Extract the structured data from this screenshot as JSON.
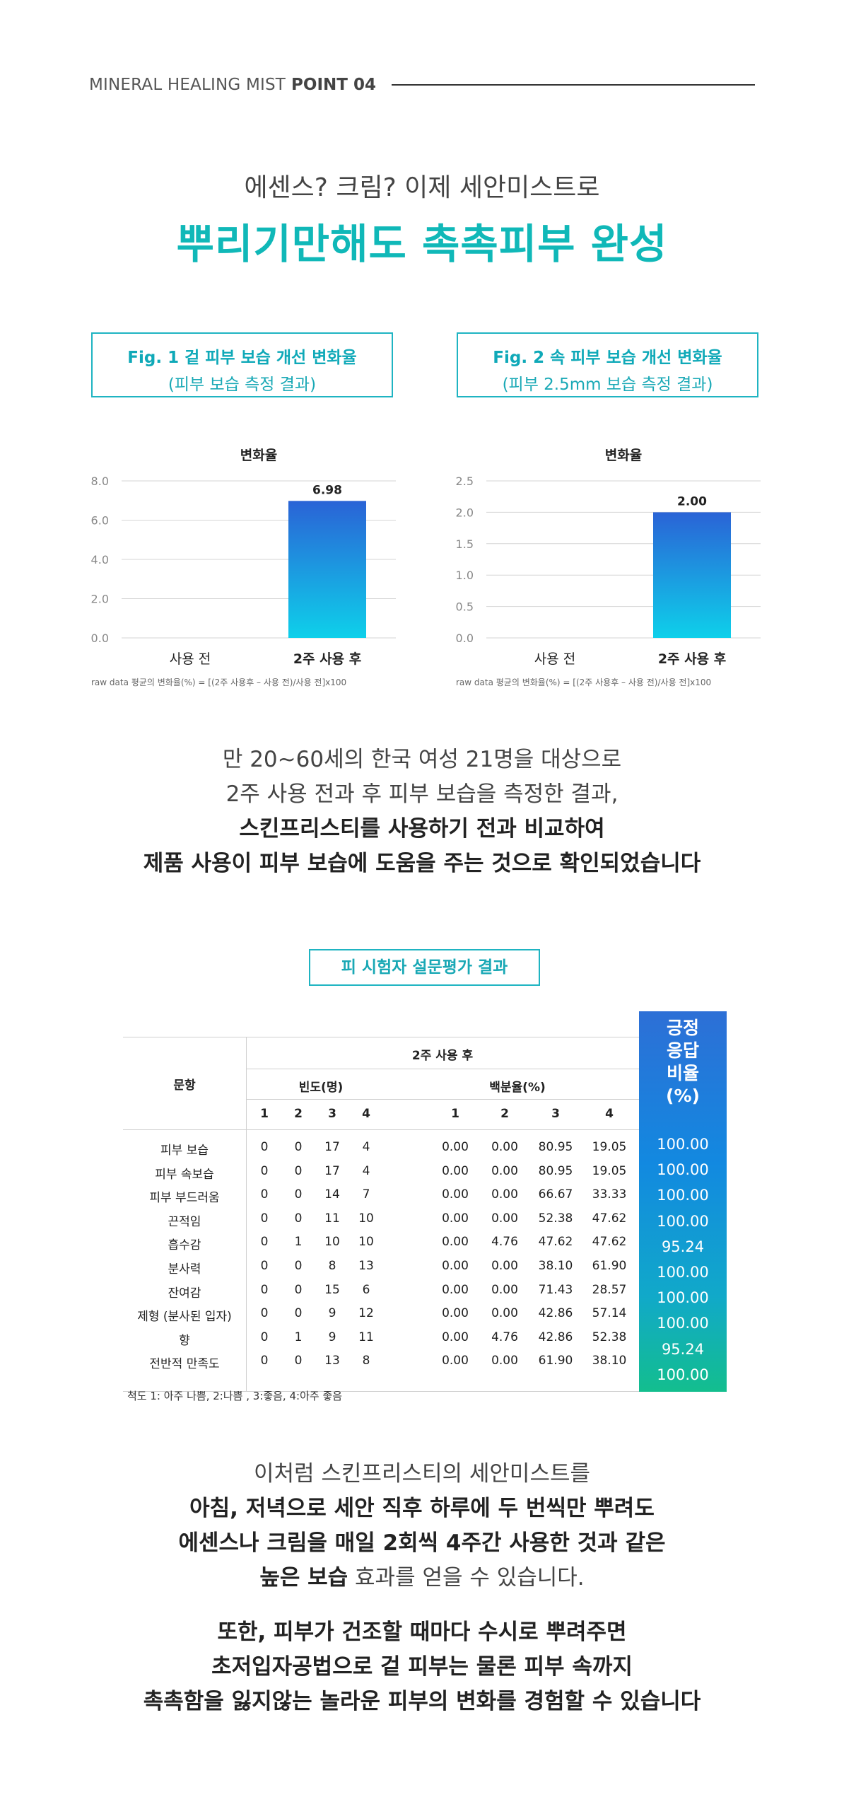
{
  "header": {
    "title_light": "MINERAL HEALING MIST",
    "title_bold": "POINT 04"
  },
  "intro": {
    "subheadline": "에센스? 크림? 이제 세안미스트로",
    "headline": "뿌리기만해도 촉촉피부 완성"
  },
  "fig1": {
    "title": "Fig. 1 겉 피부 보습 개선 변화율",
    "subtitle": "(피부 보습 측정 결과)"
  },
  "fig2": {
    "title": "Fig. 2 속 피부 보습 개선 변화율",
    "subtitle": "(피부 2.5mm 보습 측정 결과)"
  },
  "chart_data": [
    {
      "type": "bar",
      "title": "변화율",
      "categories": [
        "사용 전",
        "2주 사용 후"
      ],
      "values": [
        0,
        6.98
      ],
      "value_labels": [
        "",
        "6.98"
      ],
      "yticks": [
        "0.0",
        "2.0",
        "4.0",
        "6.0",
        "8.0"
      ],
      "ylim": [
        0,
        8
      ],
      "grid": true,
      "footnote": "raw data 평균의 변화율(%) = [(2주 사용후 – 사용 전)/사용 전]x100"
    },
    {
      "type": "bar",
      "title": "변화율",
      "categories": [
        "사용 전",
        "2주 사용 후"
      ],
      "values": [
        0,
        2.0
      ],
      "value_labels": [
        "",
        "2.00"
      ],
      "yticks": [
        "0.0",
        "0.5",
        "1.0",
        "1.5",
        "2.0",
        "2.5"
      ],
      "ylim": [
        0,
        2.5
      ],
      "grid": true,
      "footnote": "raw data 평균의 변화율(%) = [(2주 사용후 – 사용 전)/사용 전]x100"
    }
  ],
  "colors": {
    "accent": "#10b8b8",
    "box_border": "#1fb4c2",
    "bar_top": "#2a63d6",
    "bar_bottom": "#0ed0ea"
  },
  "para1": {
    "line1": "만 20~60세의 한국 여성 21명을 대상으로",
    "line2": "2주 사용 전과 후 피부 보습을 측정한 결과,",
    "line3": "스킨프리스티를 사용하기 전과 비교하여",
    "line4": "제품 사용이 피부 보습에 도움을 주는 것으로 확인되었습니다"
  },
  "survey": {
    "title": "피 시험자 설문평가 결과",
    "col_item": "문항",
    "col_group": "2주 사용 후",
    "col_freq": "빈도(명)",
    "col_pct": "백분율(%)",
    "col_positive": "긍정\n응답\n비율\n(%)",
    "scale_nums": [
      "1",
      "2",
      "3",
      "4"
    ],
    "rows": [
      {
        "item": "피부 보습",
        "freq": [
          "0",
          "0",
          "17",
          "4"
        ],
        "pct": [
          "0.00",
          "0.00",
          "80.95",
          "19.05"
        ],
        "positive": "100.00"
      },
      {
        "item": "피부 속보습",
        "freq": [
          "0",
          "0",
          "17",
          "4"
        ],
        "pct": [
          "0.00",
          "0.00",
          "80.95",
          "19.05"
        ],
        "positive": "100.00"
      },
      {
        "item": "피부 부드러움",
        "freq": [
          "0",
          "0",
          "14",
          "7"
        ],
        "pct": [
          "0.00",
          "0.00",
          "66.67",
          "33.33"
        ],
        "positive": "100.00"
      },
      {
        "item": "끈적임",
        "freq": [
          "0",
          "0",
          "11",
          "10"
        ],
        "pct": [
          "0.00",
          "0.00",
          "52.38",
          "47.62"
        ],
        "positive": "100.00"
      },
      {
        "item": "흡수감",
        "freq": [
          "0",
          "1",
          "10",
          "10"
        ],
        "pct": [
          "0.00",
          "4.76",
          "47.62",
          "47.62"
        ],
        "positive": "95.24"
      },
      {
        "item": "분사력",
        "freq": [
          "0",
          "0",
          "8",
          "13"
        ],
        "pct": [
          "0.00",
          "0.00",
          "38.10",
          "61.90"
        ],
        "positive": "100.00"
      },
      {
        "item": "잔여감",
        "freq": [
          "0",
          "0",
          "15",
          "6"
        ],
        "pct": [
          "0.00",
          "0.00",
          "71.43",
          "28.57"
        ],
        "positive": "100.00"
      },
      {
        "item": "제형 (분사된 입자)",
        "freq": [
          "0",
          "0",
          "9",
          "12"
        ],
        "pct": [
          "0.00",
          "0.00",
          "42.86",
          "57.14"
        ],
        "positive": "100.00"
      },
      {
        "item": "향",
        "freq": [
          "0",
          "1",
          "9",
          "11"
        ],
        "pct": [
          "0.00",
          "4.76",
          "42.86",
          "52.38"
        ],
        "positive": "95.24"
      },
      {
        "item": "전반적 만족도",
        "freq": [
          "0",
          "0",
          "13",
          "8"
        ],
        "pct": [
          "0.00",
          "0.00",
          "61.90",
          "38.10"
        ],
        "positive": "100.00"
      }
    ],
    "scale_note": "척도 1: 아주 나쁨,  2:나쁨 , 3:좋음, 4:아주 좋음"
  },
  "para2": {
    "line1": "이처럼 스킨프리스티의 세안미스트를",
    "line2": "아침, 저녁으로 세안 직후 하루에 두 번씩만 뿌려도",
    "line3": "에센스나 크림을 매일 2회씩 4주간 사용한 것과 같은",
    "line4_bold": "높은 보습",
    "line4_rest": " 효과를 얻을 수 있습니다."
  },
  "para3": {
    "line1": "또한, 피부가 건조할 때마다 수시로 뿌려주면",
    "line2": "초저입자공법으로 겉 피부는 물론 피부 속까지",
    "line3": "촉촉함을 잃지않는 놀라운 피부의 변화를 경험할 수 있습니다"
  }
}
